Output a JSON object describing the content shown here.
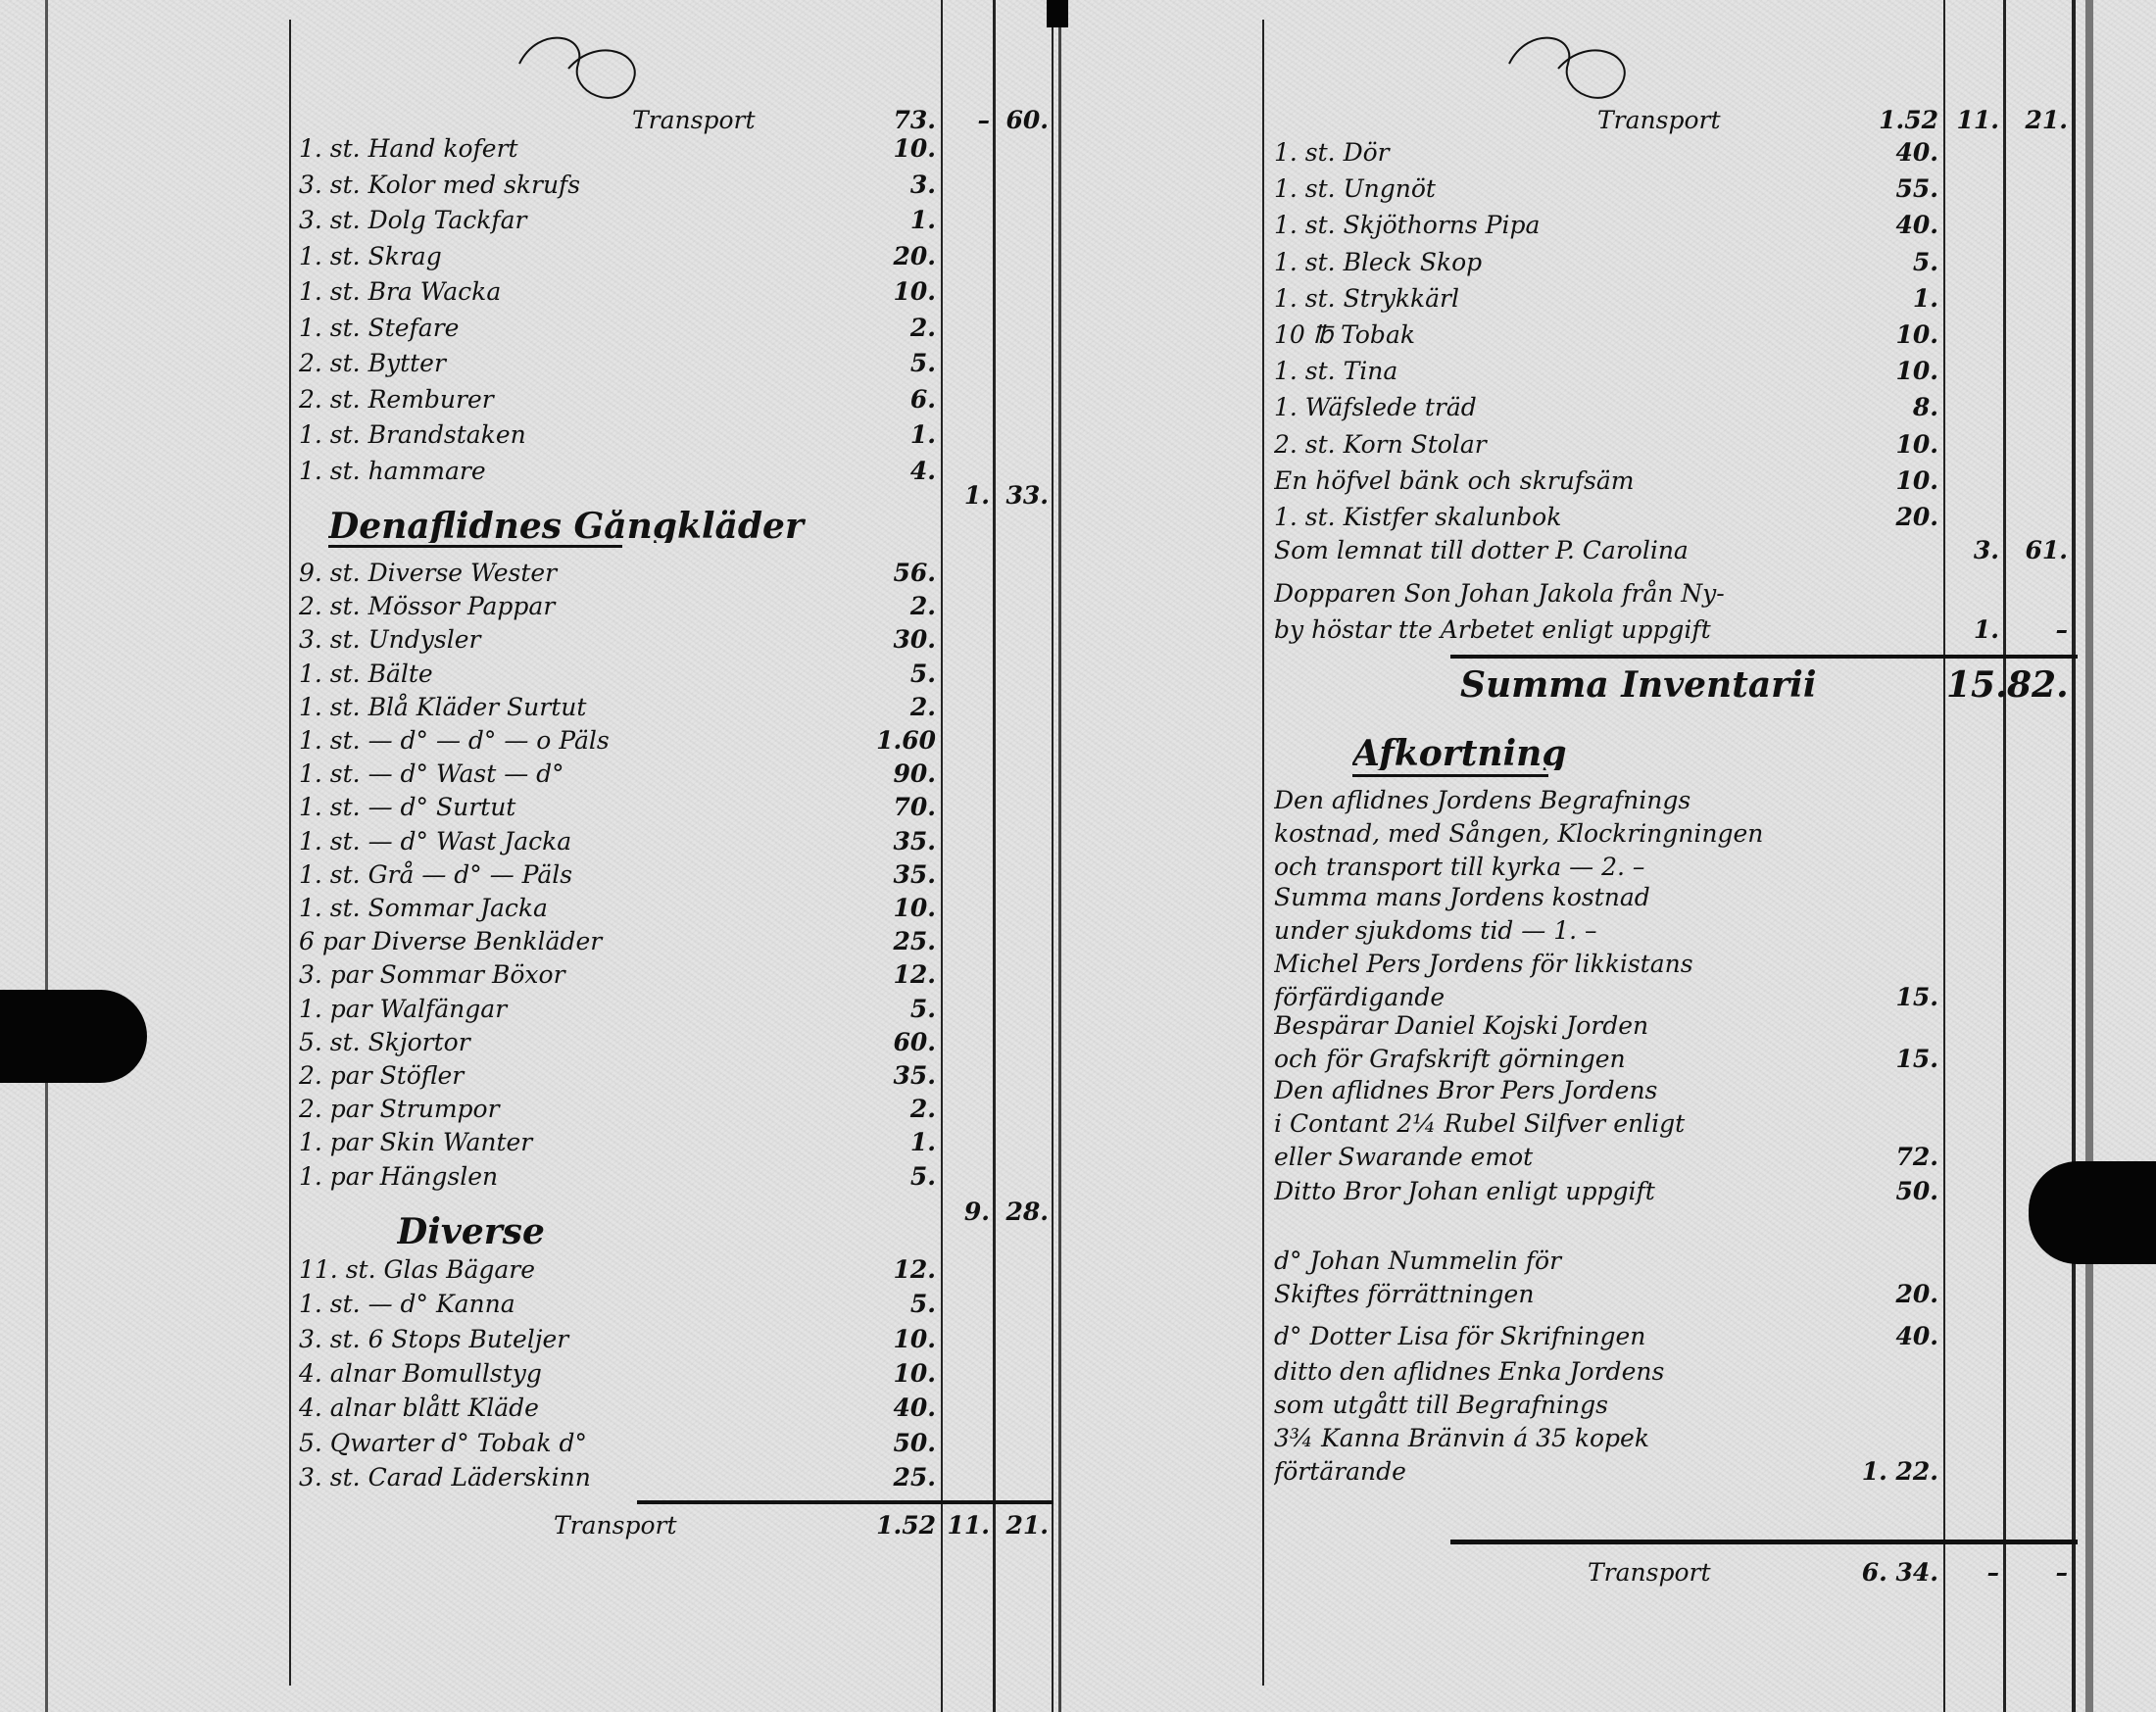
{
  "left_page": {
    "transport": {
      "label": "Transport",
      "amount": "73.",
      "c2": "–",
      "c3": "60."
    },
    "group1": [
      {
        "text": "1. st. Hand kofert",
        "amount": "10."
      },
      {
        "text": "3. st. Kolor med skrufs",
        "amount": "3."
      },
      {
        "text": "3. st. Dolg Tackfar",
        "amount": "1."
      },
      {
        "text": "1. st. Skrag",
        "amount": "20."
      },
      {
        "text": "1. st. Bra Wacka",
        "amount": "10."
      },
      {
        "text": "1. st. Stefare",
        "amount": "2."
      },
      {
        "text": "2. st. Bytter",
        "amount": "5."
      },
      {
        "text": "2. st. Remburer",
        "amount": "6."
      },
      {
        "text": "1. st. Brandstaken",
        "amount": "1."
      },
      {
        "text": "1. st. hammare",
        "amount": "4."
      }
    ],
    "subtotal1": {
      "c2": "1.",
      "c3": "33."
    },
    "heading1": "Denaflidnes Gångkläder",
    "group2": [
      {
        "text": "9. st. Diverse Wester",
        "amount": "56."
      },
      {
        "text": "2. st. Mössor Pappar",
        "amount": "2."
      },
      {
        "text": "3. st. Undysler",
        "amount": "30."
      },
      {
        "text": "1. st. Bälte",
        "amount": "5."
      },
      {
        "text": "1. st. Blå Kläder Surtut",
        "amount": "2."
      },
      {
        "text": "1. st. — d° — d° — o Päls",
        "amount": "1.60"
      },
      {
        "text": "1. st. — d° Wast — d°",
        "amount": "90."
      },
      {
        "text": "1. st. — d° Surtut",
        "amount": "70."
      },
      {
        "text": "1. st. — d° Wast Jacka",
        "amount": "35."
      },
      {
        "text": "1. st. Grå — d° — Päls",
        "amount": "35."
      },
      {
        "text": "1. st. Sommar Jacka",
        "amount": "10."
      },
      {
        "text": "6 par Diverse Benkläder",
        "amount": "25."
      },
      {
        "text": "3. par Sommar Böxor",
        "amount": "12."
      },
      {
        "text": "1. par Walfängar",
        "amount": "5."
      },
      {
        "text": "5. st. Skjortor",
        "amount": "60."
      },
      {
        "text": "2. par Stöfler",
        "amount": "35."
      },
      {
        "text": "2. par Strumpor",
        "amount": "2."
      },
      {
        "text": "1. par Skin Wanter",
        "amount": "1."
      },
      {
        "text": "1. par Hängslen",
        "amount": "5."
      }
    ],
    "subtotal2": {
      "c2": "9.",
      "c3": "28."
    },
    "heading2": "Diverse",
    "group3": [
      {
        "text": "11. st. Glas Bägare",
        "amount": "12."
      },
      {
        "text": "1. st. — d° Kanna",
        "amount": "5."
      },
      {
        "text": "3. st. 6 Stops Buteljer",
        "amount": "10."
      },
      {
        "text": "4. alnar Bomullstyg",
        "amount": "10."
      },
      {
        "text": "4. alnar blått Kläde",
        "amount": "40."
      },
      {
        "text": "5. Qwarter d° Tobak d°",
        "amount": "50."
      },
      {
        "text": "3. st. Carad Läderskinn",
        "amount": "25."
      }
    ],
    "transport_out": {
      "label": "Transport",
      "amount": "1.52",
      "c2": "11.",
      "c3": "21."
    }
  },
  "right_page": {
    "transport": {
      "label": "Transport",
      "amount": "1.52",
      "c2": "11.",
      "c3": "21."
    },
    "items": [
      {
        "text": "1. st. Dör",
        "amount": "40."
      },
      {
        "text": "1. st. Ungnöt",
        "amount": "55."
      },
      {
        "text": "1. st. Skjöthorns Pipa",
        "amount": "40."
      },
      {
        "text": "1. st. Bleck Skop",
        "amount": "5."
      },
      {
        "text": "1. st. Strykkärl",
        "amount": "1."
      },
      {
        "text": "10 ℔ Tobak",
        "amount": "10."
      },
      {
        "text": "1. st. Tina",
        "amount": "10."
      },
      {
        "text": "1. Wäfslede träd",
        "amount": "8."
      },
      {
        "text": "2. st. Korn Stolar",
        "amount": "10."
      },
      {
        "text": "En höfvel bänk och skrufsäm",
        "amount": "10."
      },
      {
        "text": "1. st. Kistfer skalunbok",
        "amount": "20."
      }
    ],
    "lemnat": {
      "text": "Som lemnat till dotter P. Carolina",
      "c2": "3.",
      "c3": "61."
    },
    "dopparen": {
      "lines": [
        "Dopparen Son Johan Jakola från Ny-",
        "by höstar tte Arbetet enligt uppgift"
      ],
      "c2": "1.",
      "c3": "–"
    },
    "summa": {
      "text": "Summa Inventarii",
      "c2": "15.",
      "c3": "82."
    },
    "heading": "Afkortning",
    "entries": [
      {
        "lines": [
          "Den aflidnes Jordens Begrafnings",
          "kostnad, med Sången, Klockringningen",
          "och transport till kyrka — 2. –"
        ],
        "amount": ""
      },
      {
        "lines": [
          "Summa mans Jordens kostnad",
          "under sjukdoms tid — 1. –"
        ],
        "amount": ""
      },
      {
        "lines": [
          "Michel Pers Jordens för likkistans",
          "förfärdigande"
        ],
        "amount": "15."
      },
      {
        "lines": [
          "Bespärar Daniel Kojski Jorden",
          "och för Grafskrift görningen"
        ],
        "amount": "15."
      },
      {
        "lines": [
          "Den aflidnes Bror Pers Jordens",
          "i Contant 2¼ Rubel Silfver enligt",
          "eller Swarande emot"
        ],
        "amount": "72."
      },
      {
        "lines": [
          "Ditto Bror Johan enligt uppgift"
        ],
        "amount": "50."
      },
      {
        "lines": [
          "d° Johan Nummelin för",
          "Skiftes förrättningen"
        ],
        "amount": "20."
      },
      {
        "lines": [
          "d° Dotter Lisa för Skrifningen"
        ],
        "amount": "40."
      },
      {
        "lines": [
          "ditto den aflidnes Enka Jordens",
          "som utgått till Begrafnings",
          "3¾ Kanna Bränvin á 35 kopek",
          "förtärande"
        ],
        "amount": "1. 22."
      }
    ],
    "transport_out": {
      "label": "Transport",
      "amount": "6. 34.",
      "c2": "–",
      "c3": "–"
    }
  }
}
